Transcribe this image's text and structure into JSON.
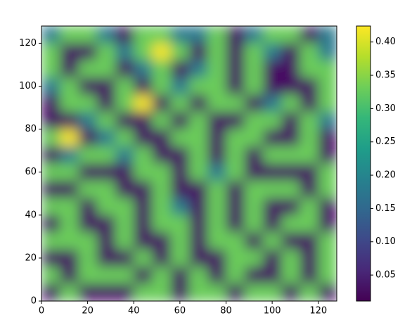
{
  "chart_data": {
    "type": "heatmap",
    "colormap": "viridis",
    "xlim": [
      0,
      128
    ],
    "ylim": [
      0,
      128
    ],
    "xticks": [
      0,
      20,
      40,
      60,
      80,
      100,
      120
    ],
    "yticks": [
      0,
      20,
      40,
      60,
      80,
      100,
      120
    ],
    "clim": [
      0.011,
      0.424
    ],
    "cticks": [
      0.05,
      {
        "value": 0.1,
        "label": "0.10"
      },
      0.15,
      {
        "value": 0.2,
        "label": "0.20"
      },
      0.25,
      {
        "value": 0.3,
        "label": "0.30"
      },
      0.35,
      {
        "value": 0.4,
        "label": "0.40"
      }
    ],
    "z": [
      [
        0.18,
        0.33,
        0.33,
        0.18,
        0.03,
        0.33,
        0.33,
        0.18,
        0.18,
        0.33,
        0.03,
        0.18,
        0.33,
        0.33,
        0.03,
        0.18
      ],
      [
        0.33,
        0.03,
        0.03,
        0.33,
        0.18,
        0.33,
        0.42,
        0.33,
        0.03,
        0.33,
        0.03,
        0.33,
        0.18,
        0.03,
        0.33,
        0.18
      ],
      [
        0.33,
        0.03,
        0.33,
        0.33,
        0.03,
        0.18,
        0.33,
        0.03,
        0.18,
        0.33,
        0.03,
        0.33,
        0.03,
        0.03,
        0.33,
        0.33
      ],
      [
        0.18,
        0.33,
        0.03,
        0.03,
        0.33,
        0.03,
        0.33,
        0.18,
        0.33,
        0.33,
        0.03,
        0.33,
        0.03,
        0.03,
        0.03,
        0.33
      ],
      [
        0.03,
        0.33,
        0.33,
        0.03,
        0.33,
        0.42,
        0.03,
        0.33,
        0.03,
        0.33,
        0.33,
        0.03,
        0.18,
        0.33,
        0.03,
        0.33
      ],
      [
        0.03,
        0.03,
        0.18,
        0.33,
        0.03,
        0.03,
        0.33,
        0.03,
        0.33,
        0.03,
        0.03,
        0.33,
        0.33,
        0.03,
        0.33,
        0.18
      ],
      [
        0.33,
        0.42,
        0.03,
        0.18,
        0.33,
        0.03,
        0.03,
        0.33,
        0.33,
        0.03,
        0.33,
        0.33,
        0.03,
        0.03,
        0.33,
        0.03
      ],
      [
        0.03,
        0.18,
        0.33,
        0.33,
        0.18,
        0.33,
        0.03,
        0.03,
        0.33,
        0.03,
        0.33,
        0.03,
        0.33,
        0.33,
        0.33,
        0.03
      ],
      [
        0.33,
        0.33,
        0.03,
        0.03,
        0.03,
        0.33,
        0.33,
        0.03,
        0.33,
        0.18,
        0.33,
        0.03,
        0.03,
        0.03,
        0.03,
        0.33
      ],
      [
        0.03,
        0.03,
        0.33,
        0.33,
        0.03,
        0.03,
        0.33,
        0.03,
        0.03,
        0.33,
        0.03,
        0.33,
        0.33,
        0.33,
        0.03,
        0.33
      ],
      [
        0.33,
        0.33,
        0.03,
        0.33,
        0.33,
        0.03,
        0.33,
        0.18,
        0.03,
        0.33,
        0.03,
        0.33,
        0.03,
        0.03,
        0.33,
        0.03
      ],
      [
        0.03,
        0.33,
        0.03,
        0.03,
        0.33,
        0.03,
        0.33,
        0.33,
        0.03,
        0.33,
        0.03,
        0.33,
        0.03,
        0.33,
        0.33,
        0.03
      ],
      [
        0.33,
        0.33,
        0.33,
        0.03,
        0.33,
        0.03,
        0.03,
        0.33,
        0.03,
        0.33,
        0.33,
        0.03,
        0.33,
        0.03,
        0.03,
        0.33
      ],
      [
        0.03,
        0.03,
        0.33,
        0.03,
        0.03,
        0.33,
        0.03,
        0.33,
        0.03,
        0.03,
        0.33,
        0.33,
        0.03,
        0.33,
        0.03,
        0.33
      ],
      [
        0.33,
        0.03,
        0.33,
        0.33,
        0.33,
        0.03,
        0.33,
        0.03,
        0.33,
        0.03,
        0.33,
        0.03,
        0.03,
        0.33,
        0.03,
        0.33
      ],
      [
        0.03,
        0.33,
        0.03,
        0.03,
        0.03,
        0.33,
        0.33,
        0.03,
        0.33,
        0.33,
        0.03,
        0.33,
        0.33,
        0.03,
        0.33,
        0.03
      ]
    ]
  }
}
